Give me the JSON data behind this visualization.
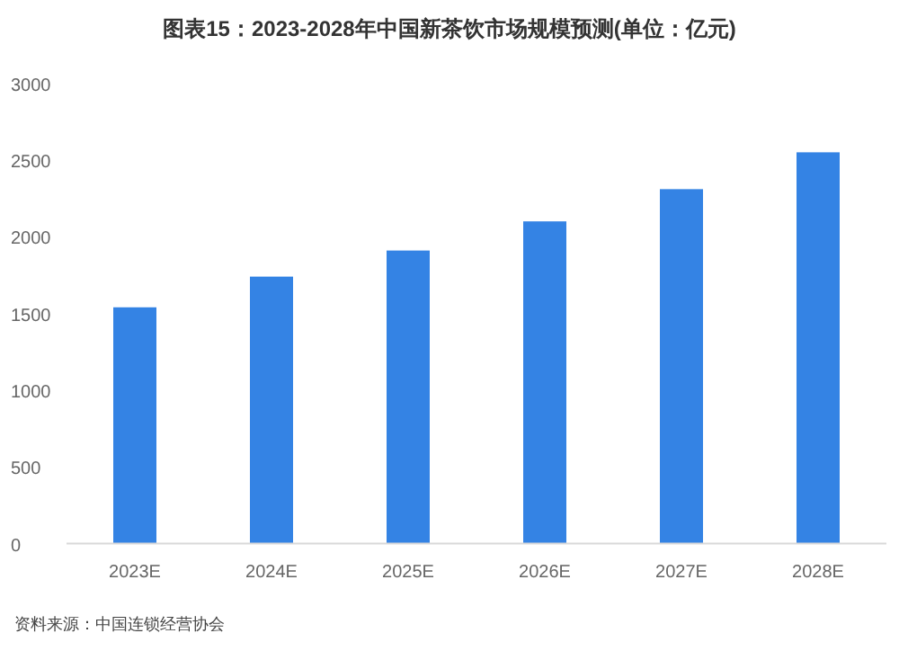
{
  "chart_data": {
    "type": "bar",
    "title": "图表15：2023-2028年中国新茶饮市场规模预测(单位：亿元)",
    "categories": [
      "2023E",
      "2024E",
      "2025E",
      "2026E",
      "2027E",
      "2028E"
    ],
    "values": [
      1540,
      1740,
      1910,
      2100,
      2310,
      2550
    ],
    "color": "#3483e4",
    "ylim": [
      0,
      3000
    ],
    "yticks": [
      0,
      500,
      1000,
      1500,
      2000,
      2500,
      3000
    ],
    "annotations": [
      "资料来源：中国连锁经营协会"
    ]
  }
}
